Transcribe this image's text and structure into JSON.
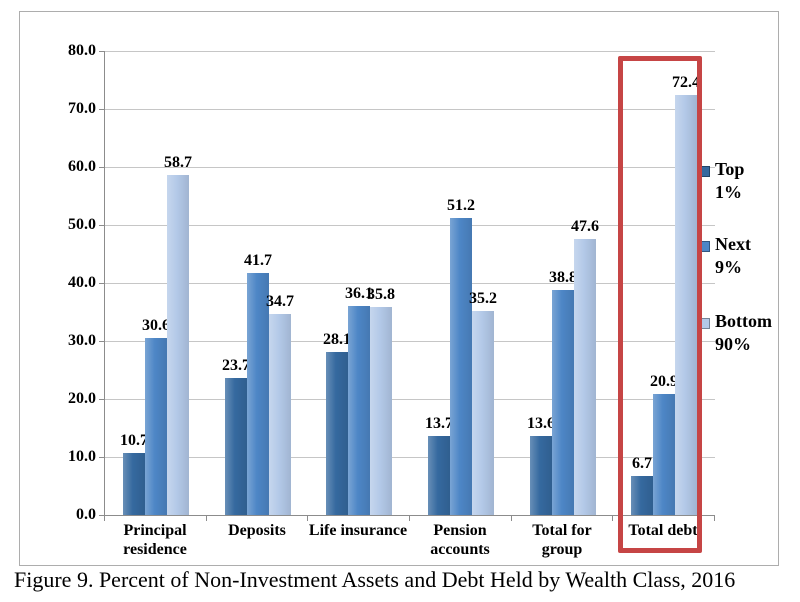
{
  "figure": {
    "caption": "Figure 9. Percent of Non-Investment Assets and Debt Held by Wealth Class, 2016"
  },
  "chart_data": {
    "type": "bar",
    "title": "Percent of Non-Investment Assets and Debt Held by Wealth Class, 2016",
    "categories": [
      "Principal residence",
      "Deposits",
      "Life insurance",
      "Pension accounts",
      "Total for group",
      "Total debt"
    ],
    "category_lines": [
      [
        "Principal",
        "residence"
      ],
      [
        "Deposits"
      ],
      [
        "Life insurance"
      ],
      [
        "Pension",
        "accounts"
      ],
      [
        "Total for",
        "group"
      ],
      [
        "Total debt"
      ]
    ],
    "series": [
      {
        "name": "Top 1%",
        "legend_lines": [
          "Top",
          "1%"
        ],
        "color": "#35699f",
        "values": [
          10.7,
          23.7,
          28.1,
          13.7,
          13.6,
          6.7
        ]
      },
      {
        "name": "Next 9%",
        "legend_lines": [
          "Next",
          "9%"
        ],
        "color": "#4d86c6",
        "values": [
          30.6,
          41.7,
          36.1,
          51.2,
          38.8,
          20.9
        ]
      },
      {
        "name": "Bottom 90%",
        "legend_lines": [
          "Bottom",
          "90%"
        ],
        "color": "#b3c9e8",
        "values": [
          58.7,
          34.7,
          35.8,
          35.2,
          47.6,
          72.4
        ]
      }
    ],
    "ylim": [
      0,
      80
    ],
    "ytick_step": 10,
    "ytick_labels": [
      "80.0",
      "70.0",
      "60.0",
      "50.0",
      "40.0",
      "30.0",
      "20.0",
      "10.0",
      "0.0"
    ],
    "value_label_decimals": 1,
    "grid": true,
    "grid_color": "#c6c6c6",
    "axis_color": "#8c8c8c",
    "legend_position": "right",
    "highlight": {
      "category": "Total debt",
      "border_color": "#c64545"
    }
  }
}
